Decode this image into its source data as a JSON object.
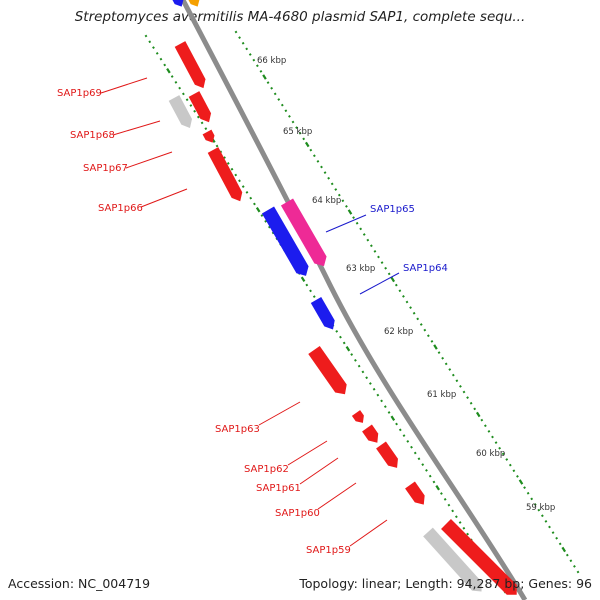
{
  "title": "Streptomyces avermitilis MA-4680 plasmid SAP1, complete sequ...",
  "footer": {
    "accession": "Accession: NC_004719",
    "summary": "Topology: linear; Length: 94,287 bp; Genes: 96"
  },
  "colors": {
    "backbone": "#8c8c8c",
    "tick": "#1e8c1e",
    "red_gene": "#ee1c1c",
    "red_label": "#e01818",
    "blue_gene": "#1c1cee",
    "blue_label": "#1a1acc",
    "pink_gene": "#ee2a96",
    "grey_gene": "#c8c8c8",
    "orange_gene": "#f5a000"
  },
  "kbp_labels": [
    "66 kbp",
    "65 kbp",
    "64 kbp",
    "63 kbp",
    "62 kbp",
    "61 kbp",
    "60 kbp",
    "59 kbp"
  ],
  "gene_labels": [
    {
      "id": "g69",
      "text": "SAP1p69",
      "color": "red"
    },
    {
      "id": "g68",
      "text": "SAP1p68",
      "color": "red"
    },
    {
      "id": "g67",
      "text": "SAP1p67",
      "color": "red"
    },
    {
      "id": "g66",
      "text": "SAP1p66",
      "color": "red"
    },
    {
      "id": "g65",
      "text": "SAP1p65",
      "color": "blue"
    },
    {
      "id": "g64",
      "text": "SAP1p64",
      "color": "blue"
    },
    {
      "id": "g63",
      "text": "SAP1p63",
      "color": "red"
    },
    {
      "id": "g62",
      "text": "SAP1p62",
      "color": "red"
    },
    {
      "id": "g61",
      "text": "SAP1p61",
      "color": "red"
    },
    {
      "id": "g60",
      "text": "SAP1p60",
      "color": "red"
    },
    {
      "id": "g59",
      "text": "SAP1p59",
      "color": "red"
    }
  ]
}
